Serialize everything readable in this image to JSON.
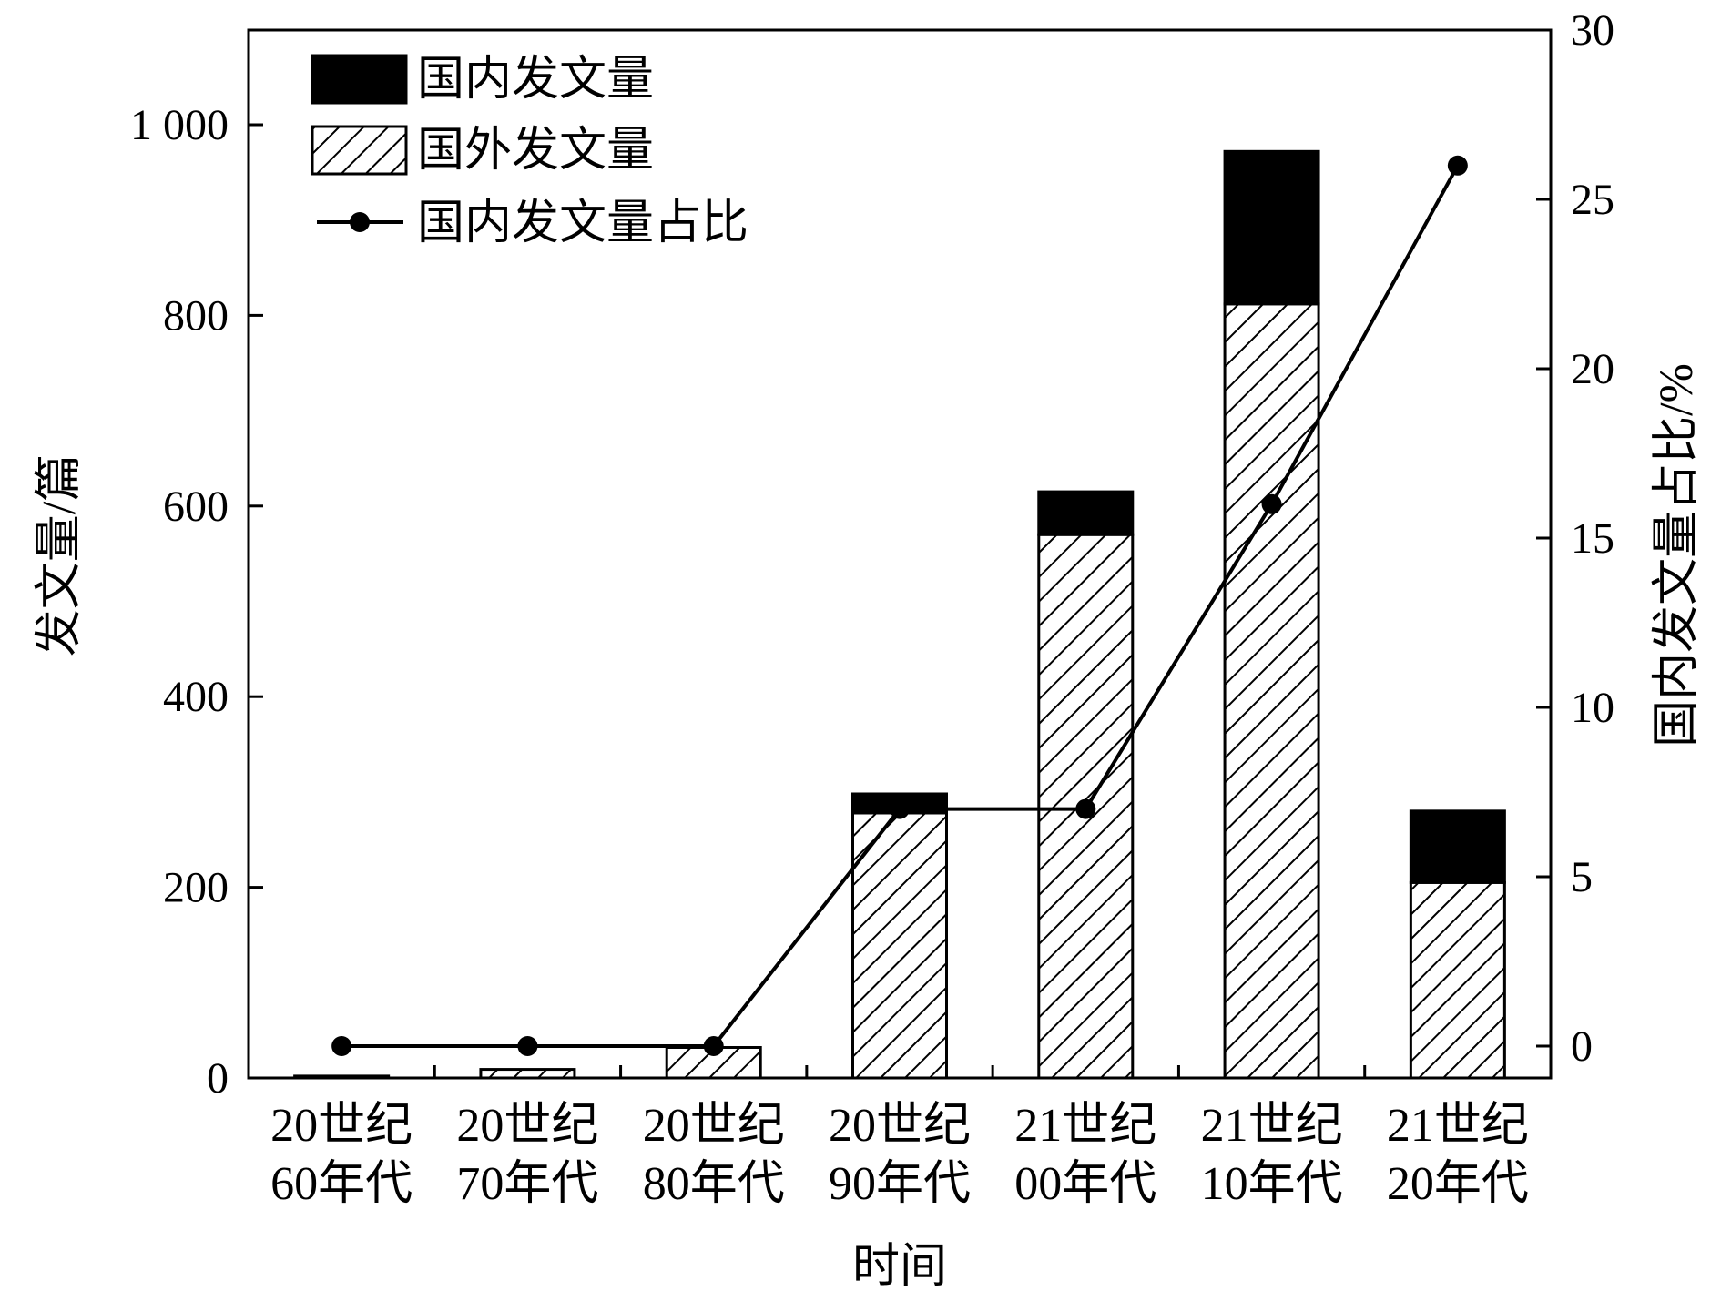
{
  "chart_data": {
    "type": "bar",
    "stacked": true,
    "categories": [
      [
        "20世纪",
        "60年代"
      ],
      [
        "20世纪",
        "70年代"
      ],
      [
        "20世纪",
        "80年代"
      ],
      [
        "20世纪",
        "90年代"
      ],
      [
        "21世纪",
        "00年代"
      ],
      [
        "21世纪",
        "10年代"
      ],
      [
        "21世纪",
        "20年代"
      ]
    ],
    "series": [
      {
        "name": "国外发文量",
        "axis": "left",
        "style": "hatch",
        "values": [
          2,
          9,
          32,
          278,
          570,
          812,
          205
        ]
      },
      {
        "name": "国内发文量",
        "axis": "left",
        "style": "solid",
        "color": "#000000",
        "values": [
          0,
          0,
          0,
          20,
          45,
          160,
          75
        ]
      },
      {
        "name": "国内发文量占比",
        "axis": "right",
        "type": "line",
        "marker": "circle",
        "color": "#000000",
        "values": [
          0,
          0,
          0,
          7,
          7,
          16,
          26
        ]
      }
    ],
    "xlabel": "时间",
    "ylabel": "发文量/篇",
    "y2label": "国内发文量占比/%",
    "ylim": [
      0,
      1000
    ],
    "y2lim": [
      -1,
      30
    ],
    "yticks": [
      0,
      200,
      400,
      600,
      800,
      1000
    ],
    "ytick_labels": [
      "0",
      "200",
      "400",
      "600",
      "800",
      "1 000"
    ],
    "y2ticks": [
      0,
      5,
      10,
      15,
      20,
      25,
      30
    ],
    "y2tick_labels": [
      "0",
      "5",
      "10",
      "15",
      "20",
      "25",
      "30"
    ],
    "legend": {
      "position": "top-left",
      "entries": [
        "国内发文量",
        "国外发文量",
        "国内发文量占比"
      ]
    },
    "grid": false
  }
}
